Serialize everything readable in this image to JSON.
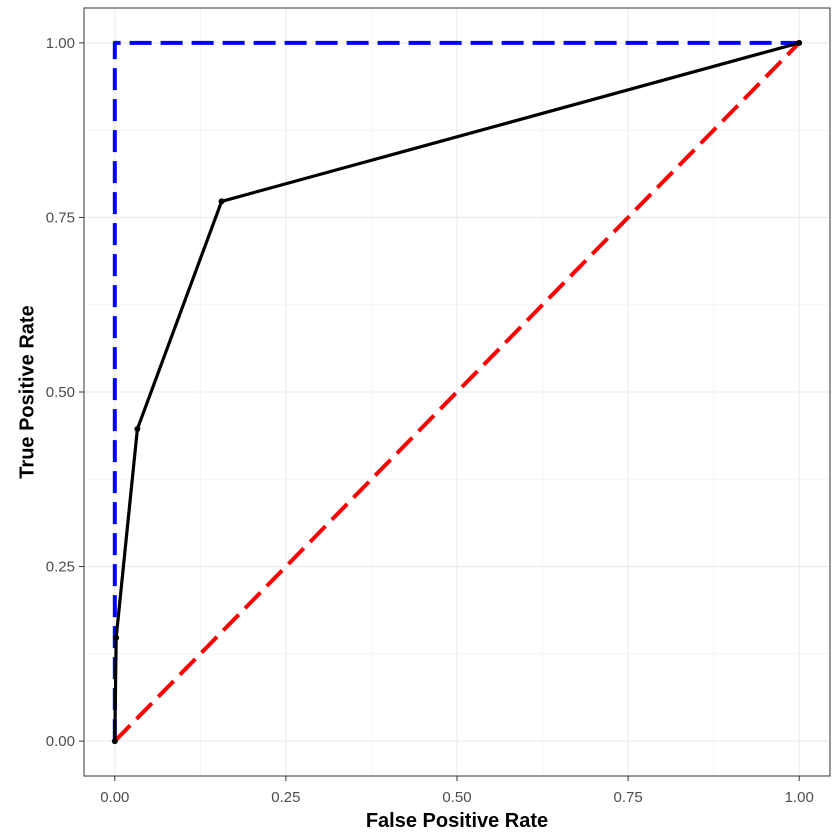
{
  "chart_data": {
    "type": "line",
    "title": "",
    "xlabel": "False Positive Rate",
    "ylabel": "True Positive Rate",
    "xlim": [
      -0.045,
      1.045
    ],
    "ylim": [
      -0.05,
      1.05
    ],
    "x_ticks": [
      "0.00",
      "0.25",
      "0.50",
      "0.75",
      "1.00"
    ],
    "x_tick_values": [
      0,
      0.25,
      0.5,
      0.75,
      1
    ],
    "y_ticks": [
      "0.00",
      "0.25",
      "0.50",
      "0.75",
      "1.00"
    ],
    "y_tick_values": [
      0,
      0.25,
      0.5,
      0.75,
      1
    ],
    "grid": true,
    "legend": "none",
    "series": [
      {
        "color": "#0000ff",
        "style": "dashed",
        "x": [
          0,
          0,
          1
        ],
        "y": [
          0,
          1,
          1
        ]
      },
      {
        "color": "#ff0000",
        "style": "dashed",
        "x": [
          0,
          1
        ],
        "y": [
          0,
          1
        ]
      },
      {
        "color": "#000000",
        "style": "solid",
        "markers": true,
        "x": [
          0,
          0.002,
          0.033,
          0.156,
          1
        ],
        "y": [
          0,
          0.148,
          0.447,
          0.773,
          1
        ]
      }
    ]
  }
}
